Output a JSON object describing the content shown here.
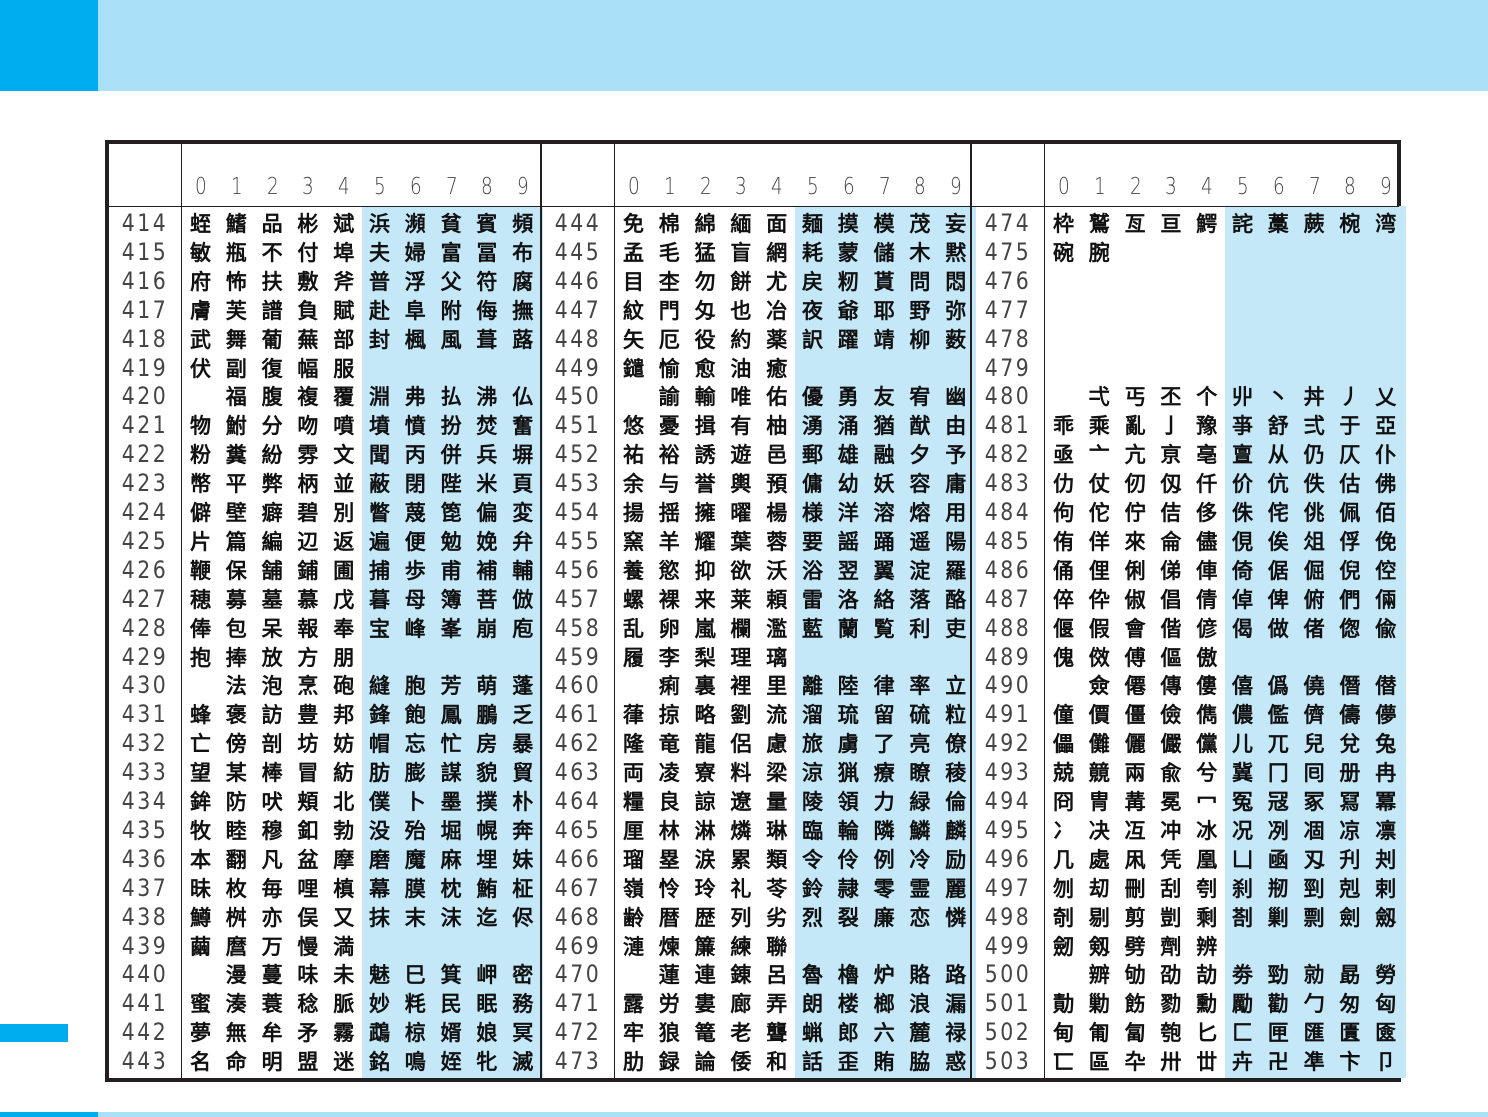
{
  "colors": {
    "header_bg": "#abe1f8",
    "accent": "#00aeef",
    "highlight_columns": "#c5e8f8",
    "border": "#231f20"
  },
  "column_digits": [
    "0",
    "1",
    "2",
    "3",
    "4",
    "5",
    "6",
    "7",
    "8",
    "9"
  ],
  "panels": [
    {
      "rows": [
        {
          "code": "414",
          "chars": "蛭鰭品彬斌浜瀕貧賓頻"
        },
        {
          "code": "415",
          "chars": "敏瓶不付埠夫婦富冨布"
        },
        {
          "code": "416",
          "chars": "府怖扶敷斧普浮父符腐"
        },
        {
          "code": "417",
          "chars": "膚芙譜負賦赴阜附侮撫"
        },
        {
          "code": "418",
          "chars": "武舞葡蕪部封楓風葺蕗"
        },
        {
          "code": "419",
          "chars": "伏副復幅服"
        },
        {
          "code": "420",
          "chars": "　福腹複覆淵弗払沸仏"
        },
        {
          "code": "421",
          "chars": "物鮒分吻噴墳憤扮焚奮"
        },
        {
          "code": "422",
          "chars": "粉糞紛雰文聞丙併兵塀"
        },
        {
          "code": "423",
          "chars": "幣平弊柄並蔽閉陛米頁"
        },
        {
          "code": "424",
          "chars": "僻壁癖碧別瞥蔑箆偏変"
        },
        {
          "code": "425",
          "chars": "片篇編辺返遍便勉娩弁"
        },
        {
          "code": "426",
          "chars": "鞭保舗鋪圃捕歩甫補輔"
        },
        {
          "code": "427",
          "chars": "穂募墓慕戊暮母簿菩倣"
        },
        {
          "code": "428",
          "chars": "俸包呆報奉宝峰峯崩庖"
        },
        {
          "code": "429",
          "chars": "抱捧放方朋"
        },
        {
          "code": "430",
          "chars": "　法泡烹砲縫胞芳萌蓬"
        },
        {
          "code": "431",
          "chars": "蜂褒訪豊邦鋒飽鳳鵬乏"
        },
        {
          "code": "432",
          "chars": "亡傍剖坊妨帽忘忙房暴"
        },
        {
          "code": "433",
          "chars": "望某棒冒紡肪膨謀貌貿"
        },
        {
          "code": "434",
          "chars": "鉾防吠頬北僕卜墨撲朴"
        },
        {
          "code": "435",
          "chars": "牧睦穆釦勃没殆堀幌奔"
        },
        {
          "code": "436",
          "chars": "本翻凡盆摩磨魔麻埋妹"
        },
        {
          "code": "437",
          "chars": "昧枚毎哩槙幕膜枕鮪柾"
        },
        {
          "code": "438",
          "chars": "鱒桝亦俣又抹末沫迄侭"
        },
        {
          "code": "439",
          "chars": "繭麿万慢満"
        },
        {
          "code": "440",
          "chars": "　漫蔓味未魅巳箕岬密"
        },
        {
          "code": "441",
          "chars": "蜜湊蓑稔脈妙粍民眠務"
        },
        {
          "code": "442",
          "chars": "夢無牟矛霧鵡椋婿娘冥"
        },
        {
          "code": "443",
          "chars": "名命明盟迷銘鳴姪牝滅"
        }
      ]
    },
    {
      "rows": [
        {
          "code": "444",
          "chars": "免棉綿緬面麺摸模茂妄"
        },
        {
          "code": "445",
          "chars": "孟毛猛盲網耗蒙儲木黙"
        },
        {
          "code": "446",
          "chars": "目杢勿餅尤戻籾貰問悶"
        },
        {
          "code": "447",
          "chars": "紋門匁也冶夜爺耶野弥"
        },
        {
          "code": "448",
          "chars": "矢厄役約薬訳躍靖柳薮"
        },
        {
          "code": "449",
          "chars": "鑓愉愈油癒"
        },
        {
          "code": "450",
          "chars": "　諭輸唯佑優勇友宥幽"
        },
        {
          "code": "451",
          "chars": "悠憂揖有柚湧涌猶猷由"
        },
        {
          "code": "452",
          "chars": "祐裕誘遊邑郵雄融夕予"
        },
        {
          "code": "453",
          "chars": "余与誉輿預傭幼妖容庸"
        },
        {
          "code": "454",
          "chars": "揚揺擁曜楊様洋溶熔用"
        },
        {
          "code": "455",
          "chars": "窯羊耀葉蓉要謡踊遥陽"
        },
        {
          "code": "456",
          "chars": "養慾抑欲沃浴翌翼淀羅"
        },
        {
          "code": "457",
          "chars": "螺裸来莱頼雷洛絡落酪"
        },
        {
          "code": "458",
          "chars": "乱卵嵐欄濫藍蘭覧利吏"
        },
        {
          "code": "459",
          "chars": "履李梨理璃"
        },
        {
          "code": "460",
          "chars": "　痢裏裡里離陸律率立"
        },
        {
          "code": "461",
          "chars": "葎掠略劉流溜琉留硫粒"
        },
        {
          "code": "462",
          "chars": "隆竜龍侶慮旅虜了亮僚"
        },
        {
          "code": "463",
          "chars": "両凌寮料梁涼猟療瞭稜"
        },
        {
          "code": "464",
          "chars": "糧良諒遼量陵領力緑倫"
        },
        {
          "code": "465",
          "chars": "厘林淋燐琳臨輪隣鱗麟"
        },
        {
          "code": "466",
          "chars": "瑠塁涙累類令伶例冷励"
        },
        {
          "code": "467",
          "chars": "嶺怜玲礼苓鈴隷零霊麗"
        },
        {
          "code": "468",
          "chars": "齢暦歴列劣烈裂廉恋憐"
        },
        {
          "code": "469",
          "chars": "漣煉簾練聯"
        },
        {
          "code": "470",
          "chars": "　蓮連錬呂魯櫓炉賂路"
        },
        {
          "code": "471",
          "chars": "露労婁廊弄朗楼榔浪漏"
        },
        {
          "code": "472",
          "chars": "牢狼篭老聾蝋郎六麓禄"
        },
        {
          "code": "473",
          "chars": "肋録論倭和話歪賄脇惑"
        }
      ]
    },
    {
      "rows": [
        {
          "code": "474",
          "chars": "枠鷲亙亘鰐詫藁蕨椀湾"
        },
        {
          "code": "475",
          "chars": "碗腕"
        },
        {
          "code": "476",
          "chars": ""
        },
        {
          "code": "477",
          "chars": ""
        },
        {
          "code": "478",
          "chars": ""
        },
        {
          "code": "479",
          "chars": ""
        },
        {
          "code": "480",
          "chars": "　弌丐丕个丱丶丼丿乂"
        },
        {
          "code": "481",
          "chars": "乖乘亂亅豫亊舒弍于亞"
        },
        {
          "code": "482",
          "chars": "亟亠亢亰亳亶从仍仄仆"
        },
        {
          "code": "483",
          "chars": "仂仗仞仭仟价伉佚估佛"
        },
        {
          "code": "484",
          "chars": "佝佗佇佶侈侏侘佻佩佰"
        },
        {
          "code": "485",
          "chars": "侑佯來侖儘俔俟俎俘俛"
        },
        {
          "code": "486",
          "chars": "俑俚俐俤俥倚倨倔倪倥"
        },
        {
          "code": "487",
          "chars": "倅伜俶倡倩倬俾俯們倆"
        },
        {
          "code": "488",
          "chars": "偃假會偕偐偈做偖偬偸"
        },
        {
          "code": "489",
          "chars": "傀傚傅傴傲"
        },
        {
          "code": "490",
          "chars": "　僉僊傳僂僖僞僥僭僣"
        },
        {
          "code": "491",
          "chars": "僮價僵儉儁儂儖儕儔儚"
        },
        {
          "code": "492",
          "chars": "儡儺儷儼儻儿兀兒兌兔"
        },
        {
          "code": "493",
          "chars": "兢竸兩兪兮冀冂囘册冉"
        },
        {
          "code": "494",
          "chars": "冏冑冓冕冖冤冦冢冩冪"
        },
        {
          "code": "495",
          "chars": "冫决冱冲冰况冽凅凉凛"
        },
        {
          "code": "496",
          "chars": "几處凩凭凰凵凾刄刋刔"
        },
        {
          "code": "497",
          "chars": "刎刧刪刮刳刹剏剄剋剌"
        },
        {
          "code": "498",
          "chars": "剞剔剪剴剩剳剿剽劍劔"
        },
        {
          "code": "499",
          "chars": "劒剱劈劑辨"
        },
        {
          "code": "500",
          "chars": "　辧劬劭劼劵勁勍勗勞"
        },
        {
          "code": "501",
          "chars": "勣勦飭勠勳勵勸勹匆匈"
        },
        {
          "code": "502",
          "chars": "甸匍匐匏匕匚匣匯匱匳"
        },
        {
          "code": "503",
          "chars": "匸區卆卅丗卉卍凖卞卩"
        }
      ]
    }
  ]
}
